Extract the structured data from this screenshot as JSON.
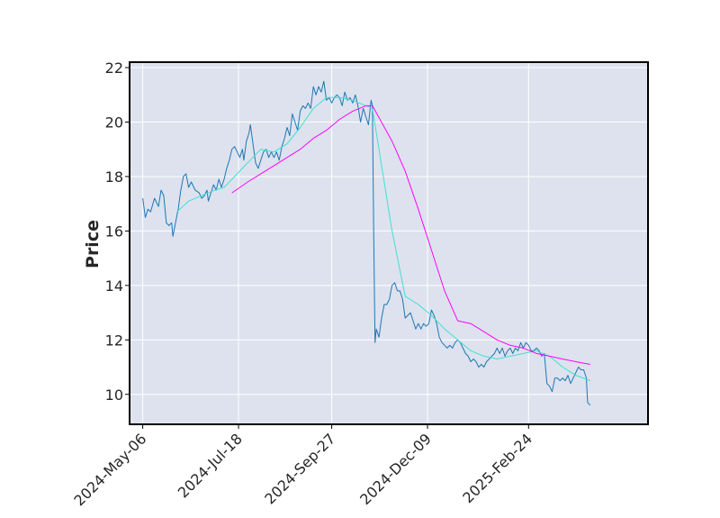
{
  "chart_data": {
    "type": "line",
    "title": "",
    "xlabel": "",
    "ylabel": "Price",
    "ylim": [
      8.9,
      22.2
    ],
    "yticks": [
      10,
      12,
      14,
      16,
      18,
      20,
      22
    ],
    "xlim": [
      -10,
      385
    ],
    "xticks": [
      {
        "label": "2024-May-06",
        "index": 0
      },
      {
        "label": "2024-Jul-18",
        "index": 73
      },
      {
        "label": "2024-Sep-27",
        "index": 144
      },
      {
        "label": "2024-Dec-09",
        "index": 217
      },
      {
        "label": "2025-Feb-24",
        "index": 294
      }
    ],
    "grid": true,
    "background": "#dde2ee",
    "series": [
      {
        "color": "#1f77b4",
        "points": [
          [
            0,
            17.2
          ],
          [
            2,
            16.5
          ],
          [
            4,
            16.8
          ],
          [
            6,
            16.7
          ],
          [
            9,
            17.2
          ],
          [
            12,
            16.9
          ],
          [
            14,
            17.5
          ],
          [
            16,
            17.3
          ],
          [
            18,
            16.3
          ],
          [
            20,
            16.2
          ],
          [
            22,
            16.3
          ],
          [
            23,
            15.8
          ],
          [
            25,
            16.3
          ],
          [
            27,
            16.8
          ],
          [
            29,
            17.5
          ],
          [
            31,
            18.0
          ],
          [
            33,
            18.1
          ],
          [
            35,
            17.6
          ],
          [
            37,
            17.8
          ],
          [
            40,
            17.5
          ],
          [
            43,
            17.4
          ],
          [
            45,
            17.2
          ],
          [
            47,
            17.3
          ],
          [
            49,
            17.5
          ],
          [
            50,
            17.1
          ],
          [
            52,
            17.4
          ],
          [
            54,
            17.7
          ],
          [
            56,
            17.5
          ],
          [
            58,
            17.9
          ],
          [
            60,
            17.6
          ],
          [
            62,
            17.9
          ],
          [
            64,
            18.3
          ],
          [
            66,
            18.6
          ],
          [
            68,
            19.0
          ],
          [
            70,
            19.1
          ],
          [
            72,
            18.9
          ],
          [
            74,
            18.7
          ],
          [
            76,
            19.0
          ],
          [
            77,
            18.6
          ],
          [
            79,
            19.3
          ],
          [
            81,
            19.6
          ],
          [
            82,
            19.9
          ],
          [
            84,
            19.2
          ],
          [
            86,
            18.5
          ],
          [
            88,
            18.3
          ],
          [
            90,
            18.6
          ],
          [
            92,
            18.9
          ],
          [
            94,
            19.0
          ],
          [
            96,
            18.7
          ],
          [
            98,
            18.9
          ],
          [
            100,
            18.7
          ],
          [
            102,
            18.9
          ],
          [
            104,
            18.6
          ],
          [
            106,
            19.1
          ],
          [
            108,
            19.4
          ],
          [
            110,
            19.8
          ],
          [
            112,
            19.5
          ],
          [
            114,
            20.3
          ],
          [
            116,
            20.0
          ],
          [
            118,
            19.7
          ],
          [
            120,
            20.4
          ],
          [
            122,
            20.6
          ],
          [
            124,
            20.5
          ],
          [
            126,
            20.7
          ],
          [
            128,
            20.5
          ],
          [
            130,
            21.3
          ],
          [
            132,
            21.0
          ],
          [
            134,
            21.3
          ],
          [
            136,
            21.1
          ],
          [
            138,
            21.5
          ],
          [
            140,
            20.8
          ],
          [
            142,
            20.9
          ],
          [
            144,
            20.7
          ],
          [
            146,
            20.9
          ],
          [
            148,
            21.0
          ],
          [
            150,
            20.9
          ],
          [
            152,
            20.6
          ],
          [
            154,
            21.1
          ],
          [
            156,
            20.8
          ],
          [
            158,
            20.9
          ],
          [
            160,
            20.7
          ],
          [
            162,
            21.0
          ],
          [
            164,
            20.6
          ],
          [
            166,
            20.0
          ],
          [
            168,
            20.5
          ],
          [
            170,
            20.2
          ],
          [
            172,
            19.9
          ],
          [
            174,
            20.8
          ],
          [
            175,
            20.6
          ],
          [
            176,
            16.0
          ],
          [
            177,
            11.9
          ],
          [
            178,
            12.4
          ],
          [
            180,
            12.1
          ],
          [
            182,
            12.8
          ],
          [
            184,
            13.3
          ],
          [
            186,
            13.3
          ],
          [
            188,
            13.5
          ],
          [
            190,
            14.0
          ],
          [
            192,
            14.1
          ],
          [
            194,
            13.8
          ],
          [
            196,
            13.8
          ],
          [
            198,
            13.5
          ],
          [
            200,
            12.8
          ],
          [
            202,
            12.9
          ],
          [
            204,
            13.0
          ],
          [
            206,
            12.7
          ],
          [
            208,
            12.4
          ],
          [
            210,
            12.6
          ],
          [
            212,
            12.4
          ],
          [
            214,
            12.6
          ],
          [
            216,
            12.5
          ],
          [
            218,
            12.6
          ],
          [
            220,
            13.1
          ],
          [
            222,
            12.9
          ],
          [
            224,
            12.6
          ],
          [
            226,
            12.1
          ],
          [
            228,
            11.9
          ],
          [
            230,
            11.8
          ],
          [
            232,
            11.7
          ],
          [
            234,
            11.8
          ],
          [
            236,
            11.7
          ],
          [
            238,
            11.9
          ],
          [
            240,
            12.0
          ],
          [
            242,
            11.9
          ],
          [
            244,
            11.7
          ],
          [
            246,
            11.5
          ],
          [
            248,
            11.4
          ],
          [
            250,
            11.2
          ],
          [
            252,
            11.3
          ],
          [
            254,
            11.2
          ],
          [
            256,
            11.0
          ],
          [
            258,
            11.1
          ],
          [
            260,
            11.0
          ],
          [
            262,
            11.2
          ],
          [
            264,
            11.3
          ],
          [
            266,
            11.4
          ],
          [
            268,
            11.5
          ],
          [
            270,
            11.7
          ],
          [
            272,
            11.5
          ],
          [
            274,
            11.7
          ],
          [
            276,
            11.4
          ],
          [
            278,
            11.6
          ],
          [
            280,
            11.7
          ],
          [
            282,
            11.5
          ],
          [
            284,
            11.7
          ],
          [
            286,
            11.6
          ],
          [
            288,
            11.9
          ],
          [
            290,
            11.7
          ],
          [
            292,
            11.9
          ],
          [
            294,
            11.8
          ],
          [
            296,
            11.6
          ],
          [
            298,
            11.6
          ],
          [
            300,
            11.7
          ],
          [
            302,
            11.6
          ],
          [
            304,
            11.4
          ],
          [
            306,
            11.5
          ],
          [
            308,
            10.4
          ],
          [
            310,
            10.3
          ],
          [
            312,
            10.1
          ],
          [
            314,
            10.6
          ],
          [
            316,
            10.6
          ],
          [
            318,
            10.5
          ],
          [
            320,
            10.6
          ],
          [
            322,
            10.5
          ],
          [
            324,
            10.7
          ],
          [
            326,
            10.4
          ],
          [
            328,
            10.6
          ],
          [
            330,
            10.8
          ],
          [
            332,
            11.0
          ],
          [
            334,
            10.9
          ],
          [
            336,
            10.9
          ],
          [
            338,
            10.6
          ],
          [
            339,
            9.7
          ],
          [
            341,
            9.6
          ]
        ]
      },
      {
        "color": "#40e0d0",
        "points": [
          [
            26,
            16.7
          ],
          [
            35,
            17.1
          ],
          [
            45,
            17.3
          ],
          [
            55,
            17.5
          ],
          [
            62,
            17.6
          ],
          [
            70,
            18.0
          ],
          [
            80,
            18.5
          ],
          [
            90,
            19.0
          ],
          [
            100,
            18.9
          ],
          [
            110,
            19.2
          ],
          [
            120,
            19.8
          ],
          [
            130,
            20.5
          ],
          [
            140,
            20.9
          ],
          [
            150,
            20.9
          ],
          [
            160,
            20.8
          ],
          [
            170,
            20.6
          ],
          [
            175,
            20.5
          ],
          [
            180,
            19.0
          ],
          [
            190,
            16.0
          ],
          [
            200,
            13.6
          ],
          [
            210,
            13.3
          ],
          [
            220,
            12.9
          ],
          [
            230,
            12.4
          ],
          [
            240,
            12.0
          ],
          [
            250,
            11.6
          ],
          [
            260,
            11.4
          ],
          [
            270,
            11.3
          ],
          [
            280,
            11.4
          ],
          [
            290,
            11.5
          ],
          [
            300,
            11.6
          ],
          [
            310,
            11.4
          ],
          [
            320,
            11.0
          ],
          [
            330,
            10.7
          ],
          [
            341,
            10.5
          ]
        ]
      },
      {
        "color": "#ff00ff",
        "points": [
          [
            68,
            17.4
          ],
          [
            80,
            17.8
          ],
          [
            90,
            18.1
          ],
          [
            100,
            18.4
          ],
          [
            110,
            18.7
          ],
          [
            120,
            19.0
          ],
          [
            130,
            19.4
          ],
          [
            140,
            19.7
          ],
          [
            150,
            20.1
          ],
          [
            160,
            20.4
          ],
          [
            170,
            20.6
          ],
          [
            175,
            20.6
          ],
          [
            190,
            19.3
          ],
          [
            200,
            18.2
          ],
          [
            210,
            16.8
          ],
          [
            220,
            15.3
          ],
          [
            230,
            13.8
          ],
          [
            240,
            12.7
          ],
          [
            250,
            12.6
          ],
          [
            260,
            12.3
          ],
          [
            270,
            12.0
          ],
          [
            280,
            11.8
          ],
          [
            290,
            11.7
          ],
          [
            300,
            11.5
          ],
          [
            310,
            11.4
          ],
          [
            320,
            11.3
          ],
          [
            330,
            11.2
          ],
          [
            341,
            11.1
          ]
        ]
      }
    ]
  }
}
